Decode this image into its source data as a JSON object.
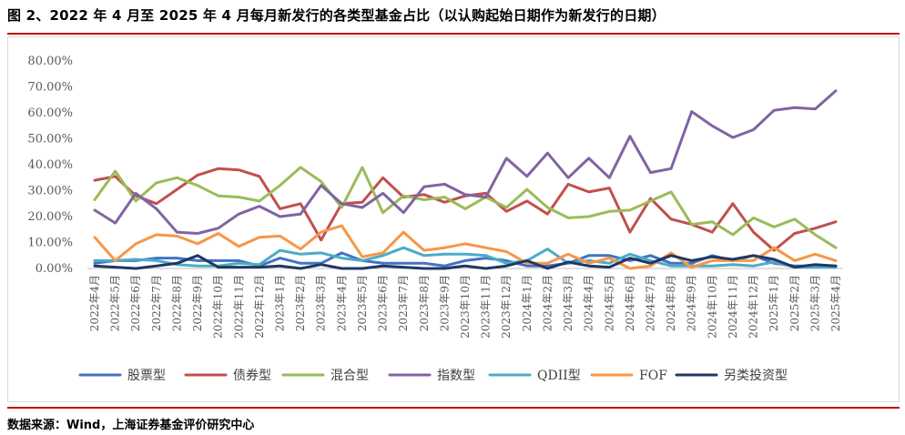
{
  "header": {
    "title": "图 2、2022 年 4 月至 2025 年 4 月每月新发行的各类型基金占比（以认购起始日期作为新发行的日期）"
  },
  "footer": {
    "source": "数据来源：Wind，上海证券基金评价研究中心"
  },
  "colors": {
    "accent_red": "#c00000",
    "frame_border": "#d9d9d9"
  },
  "chart_data": {
    "type": "line",
    "title": "2022年4月至2025年4月每月新发行的各类型基金占比",
    "xlabel": "",
    "ylabel": "",
    "ylim": [
      0,
      80
    ],
    "yticks": [
      "0.00%",
      "10.00%",
      "20.00%",
      "30.00%",
      "40.00%",
      "50.00%",
      "60.00%",
      "70.00%",
      "80.00%"
    ],
    "legend_position": "bottom",
    "categories": [
      "2022年4月",
      "2022年5月",
      "2022年6月",
      "2022年7月",
      "2022年8月",
      "2022年9月",
      "2022年10月",
      "2022年11月",
      "2022年12月",
      "2023年1月",
      "2023年2月",
      "2023年3月",
      "2023年4月",
      "2023年5月",
      "2023年6月",
      "2023年7月",
      "2023年8月",
      "2023年9月",
      "2023年10月",
      "2023年11月",
      "2023年12月",
      "2024年1月",
      "2024年2月",
      "2024年3月",
      "2024年4月",
      "2024年5月",
      "2024年6月",
      "2024年7月",
      "2024年8月",
      "2024年9月",
      "2024年10月",
      "2024年11月",
      "2024年12月",
      "2025年1月",
      "2025年2月",
      "2025年3月",
      "2025年4月"
    ],
    "series": [
      {
        "name": "股票型",
        "color": "#4472c4",
        "values": [
          2,
          3,
          3,
          4,
          4,
          3,
          3,
          3,
          1,
          4,
          2,
          2,
          6,
          3,
          2,
          2,
          2,
          1,
          3,
          4,
          3,
          1,
          1,
          2,
          5,
          5,
          3,
          5,
          2,
          2,
          5,
          3,
          5,
          2,
          1,
          1,
          0.5
        ]
      },
      {
        "name": "债券型",
        "color": "#c0504d",
        "values": [
          34,
          35.5,
          28,
          25,
          30.5,
          36,
          38.5,
          38,
          35.5,
          23,
          25,
          11,
          25,
          25.5,
          35,
          27.5,
          28.5,
          25.5,
          28,
          29,
          22,
          26,
          21,
          32.5,
          29.5,
          31,
          14,
          27,
          19,
          17,
          14,
          25,
          14,
          7,
          13.5,
          15.5,
          18
        ]
      },
      {
        "name": "混合型",
        "color": "#9bbb59",
        "values": [
          26.5,
          37.5,
          26,
          33,
          35,
          32,
          28,
          27.5,
          26,
          32,
          39,
          33.5,
          23.5,
          39,
          21.5,
          28,
          26.5,
          27.5,
          23,
          27.5,
          23.5,
          30.5,
          23.5,
          19.5,
          20,
          22,
          22.5,
          26,
          29.5,
          17,
          18,
          13,
          19.5,
          16,
          19,
          13,
          8
        ]
      },
      {
        "name": "指数型",
        "color": "#8064a2",
        "values": [
          22.5,
          17.5,
          29,
          23,
          14,
          13.5,
          15.5,
          21,
          24,
          20,
          21,
          32,
          25,
          23.5,
          29,
          21.5,
          31.5,
          32.5,
          28.5,
          27.5,
          42.5,
          35.5,
          44.5,
          35,
          42.5,
          35,
          51,
          37,
          38.5,
          60.5,
          55,
          50.5,
          53.5,
          61,
          62,
          61.5,
          68.5
        ]
      },
      {
        "name": "QDII型",
        "color": "#4bacc6",
        "values": [
          3,
          3,
          3.5,
          3,
          1.5,
          1,
          1,
          2,
          1.5,
          7,
          5.5,
          6,
          4,
          3,
          5,
          8,
          5,
          5.5,
          5.5,
          5,
          2,
          3,
          7.5,
          2,
          3,
          2,
          5.5,
          3,
          1,
          1,
          1,
          1.5,
          1,
          2.5,
          0.5,
          0.5,
          0.5
        ]
      },
      {
        "name": "FOF",
        "color": "#f79646",
        "values": [
          12,
          3,
          9.5,
          13,
          12.5,
          9.5,
          13.5,
          8.5,
          12,
          12.5,
          7.5,
          14,
          16.5,
          4.5,
          6,
          14,
          7,
          8,
          9.5,
          8,
          6.5,
          2,
          2,
          5.5,
          2,
          4,
          0,
          1,
          6,
          0.5,
          3,
          3,
          3,
          8,
          3,
          5.5,
          3
        ]
      },
      {
        "name": "另类投资型",
        "color": "#1f3864",
        "values": [
          1,
          0.5,
          0,
          1,
          2,
          5,
          0.5,
          0.5,
          0.5,
          1,
          0,
          1.5,
          0,
          0,
          1,
          0.5,
          0,
          0,
          1,
          0,
          1,
          3,
          0,
          2.5,
          1,
          0.5,
          4,
          2,
          5,
          3,
          4.5,
          3.5,
          5,
          3.5,
          0.5,
          1.5,
          1
        ]
      }
    ]
  }
}
